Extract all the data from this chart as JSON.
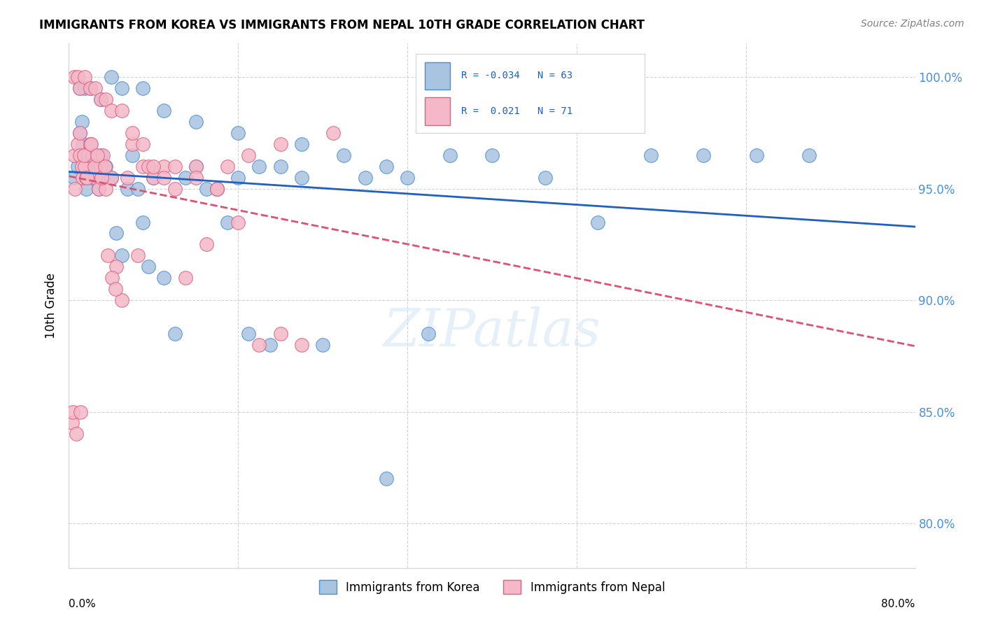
{
  "title": "IMMIGRANTS FROM KOREA VS IMMIGRANTS FROM NEPAL 10TH GRADE CORRELATION CHART",
  "source": "Source: ZipAtlas.com",
  "ylabel": "10th Grade",
  "yticks": [
    80.0,
    85.0,
    90.0,
    95.0,
    100.0
  ],
  "ytick_labels": [
    "80.0%",
    "85.0%",
    "90.0%",
    "95.0%",
    "100.0%"
  ],
  "xlim": [
    0.0,
    80.0
  ],
  "ylim": [
    78.0,
    101.5
  ],
  "korea_color": "#a8c4e0",
  "korea_color_dark": "#4a90d9",
  "nepal_color": "#f4b8c8",
  "nepal_color_dark": "#e06080",
  "korea_line_color": "#2060c0",
  "nepal_line_color": "#e05070",
  "watermark": "ZIPatlas",
  "korea_scatter_x": [
    0.5,
    0.8,
    1.0,
    1.2,
    1.3,
    1.5,
    1.6,
    1.8,
    2.0,
    2.2,
    2.5,
    2.8,
    3.0,
    3.2,
    3.5,
    4.0,
    4.5,
    5.0,
    5.5,
    6.0,
    6.5,
    7.0,
    7.5,
    8.0,
    9.0,
    10.0,
    11.0,
    12.0,
    13.0,
    14.0,
    15.0,
    16.0,
    17.0,
    18.0,
    19.0,
    20.0,
    22.0,
    24.0,
    26.0,
    28.0,
    30.0,
    32.0,
    34.0,
    36.0,
    40.0,
    45.0,
    50.0,
    55.0,
    60.0,
    65.0,
    70.0,
    1.0,
    1.5,
    2.0,
    3.0,
    4.0,
    5.0,
    7.0,
    9.0,
    12.0,
    16.0,
    22.0,
    30.0
  ],
  "korea_scatter_y": [
    95.5,
    96.0,
    97.5,
    98.0,
    97.0,
    96.5,
    95.0,
    96.5,
    97.0,
    95.5,
    96.0,
    95.0,
    96.5,
    95.5,
    96.0,
    95.5,
    93.0,
    92.0,
    95.0,
    96.5,
    95.0,
    93.5,
    91.5,
    95.5,
    91.0,
    88.5,
    95.5,
    96.0,
    95.0,
    95.0,
    93.5,
    95.5,
    88.5,
    96.0,
    88.0,
    96.0,
    95.5,
    88.0,
    96.5,
    95.5,
    96.0,
    95.5,
    88.5,
    96.5,
    96.5,
    95.5,
    93.5,
    96.5,
    96.5,
    96.5,
    96.5,
    99.5,
    99.5,
    99.5,
    99.0,
    100.0,
    99.5,
    99.5,
    98.5,
    98.0,
    97.5,
    97.0,
    82.0
  ],
  "nepal_scatter_x": [
    0.3,
    0.5,
    0.6,
    0.8,
    1.0,
    1.0,
    1.2,
    1.3,
    1.5,
    1.6,
    1.8,
    2.0,
    2.2,
    2.5,
    2.8,
    3.0,
    3.2,
    3.5,
    4.0,
    4.5,
    5.0,
    5.5,
    6.0,
    6.5,
    7.0,
    7.5,
    8.0,
    9.0,
    10.0,
    11.0,
    12.0,
    13.0,
    14.0,
    15.0,
    17.0,
    20.0,
    25.0,
    0.4,
    0.7,
    1.1,
    1.4,
    1.7,
    2.1,
    2.4,
    2.7,
    3.1,
    3.4,
    3.7,
    4.1,
    4.4,
    0.5,
    0.8,
    1.0,
    1.5,
    2.0,
    2.5,
    3.0,
    3.5,
    4.0,
    5.0,
    6.0,
    7.0,
    8.0,
    9.0,
    10.0,
    12.0,
    14.0,
    16.0,
    18.0,
    20.0,
    22.0
  ],
  "nepal_scatter_y": [
    84.5,
    96.5,
    95.0,
    97.0,
    97.5,
    96.5,
    96.0,
    95.5,
    96.0,
    95.5,
    96.5,
    97.0,
    96.5,
    95.5,
    95.0,
    96.0,
    96.5,
    95.0,
    95.5,
    91.5,
    90.0,
    95.5,
    97.0,
    92.0,
    96.0,
    96.0,
    95.5,
    96.0,
    95.0,
    91.0,
    96.0,
    92.5,
    95.0,
    96.0,
    96.5,
    97.0,
    97.5,
    85.0,
    84.0,
    85.0,
    96.5,
    95.5,
    97.0,
    96.0,
    96.5,
    95.5,
    96.0,
    92.0,
    91.0,
    90.5,
    100.0,
    100.0,
    99.5,
    100.0,
    99.5,
    99.5,
    99.0,
    99.0,
    98.5,
    98.5,
    97.5,
    97.0,
    96.0,
    95.5,
    96.0,
    95.5,
    95.0,
    93.5,
    88.0,
    88.5,
    88.0
  ]
}
